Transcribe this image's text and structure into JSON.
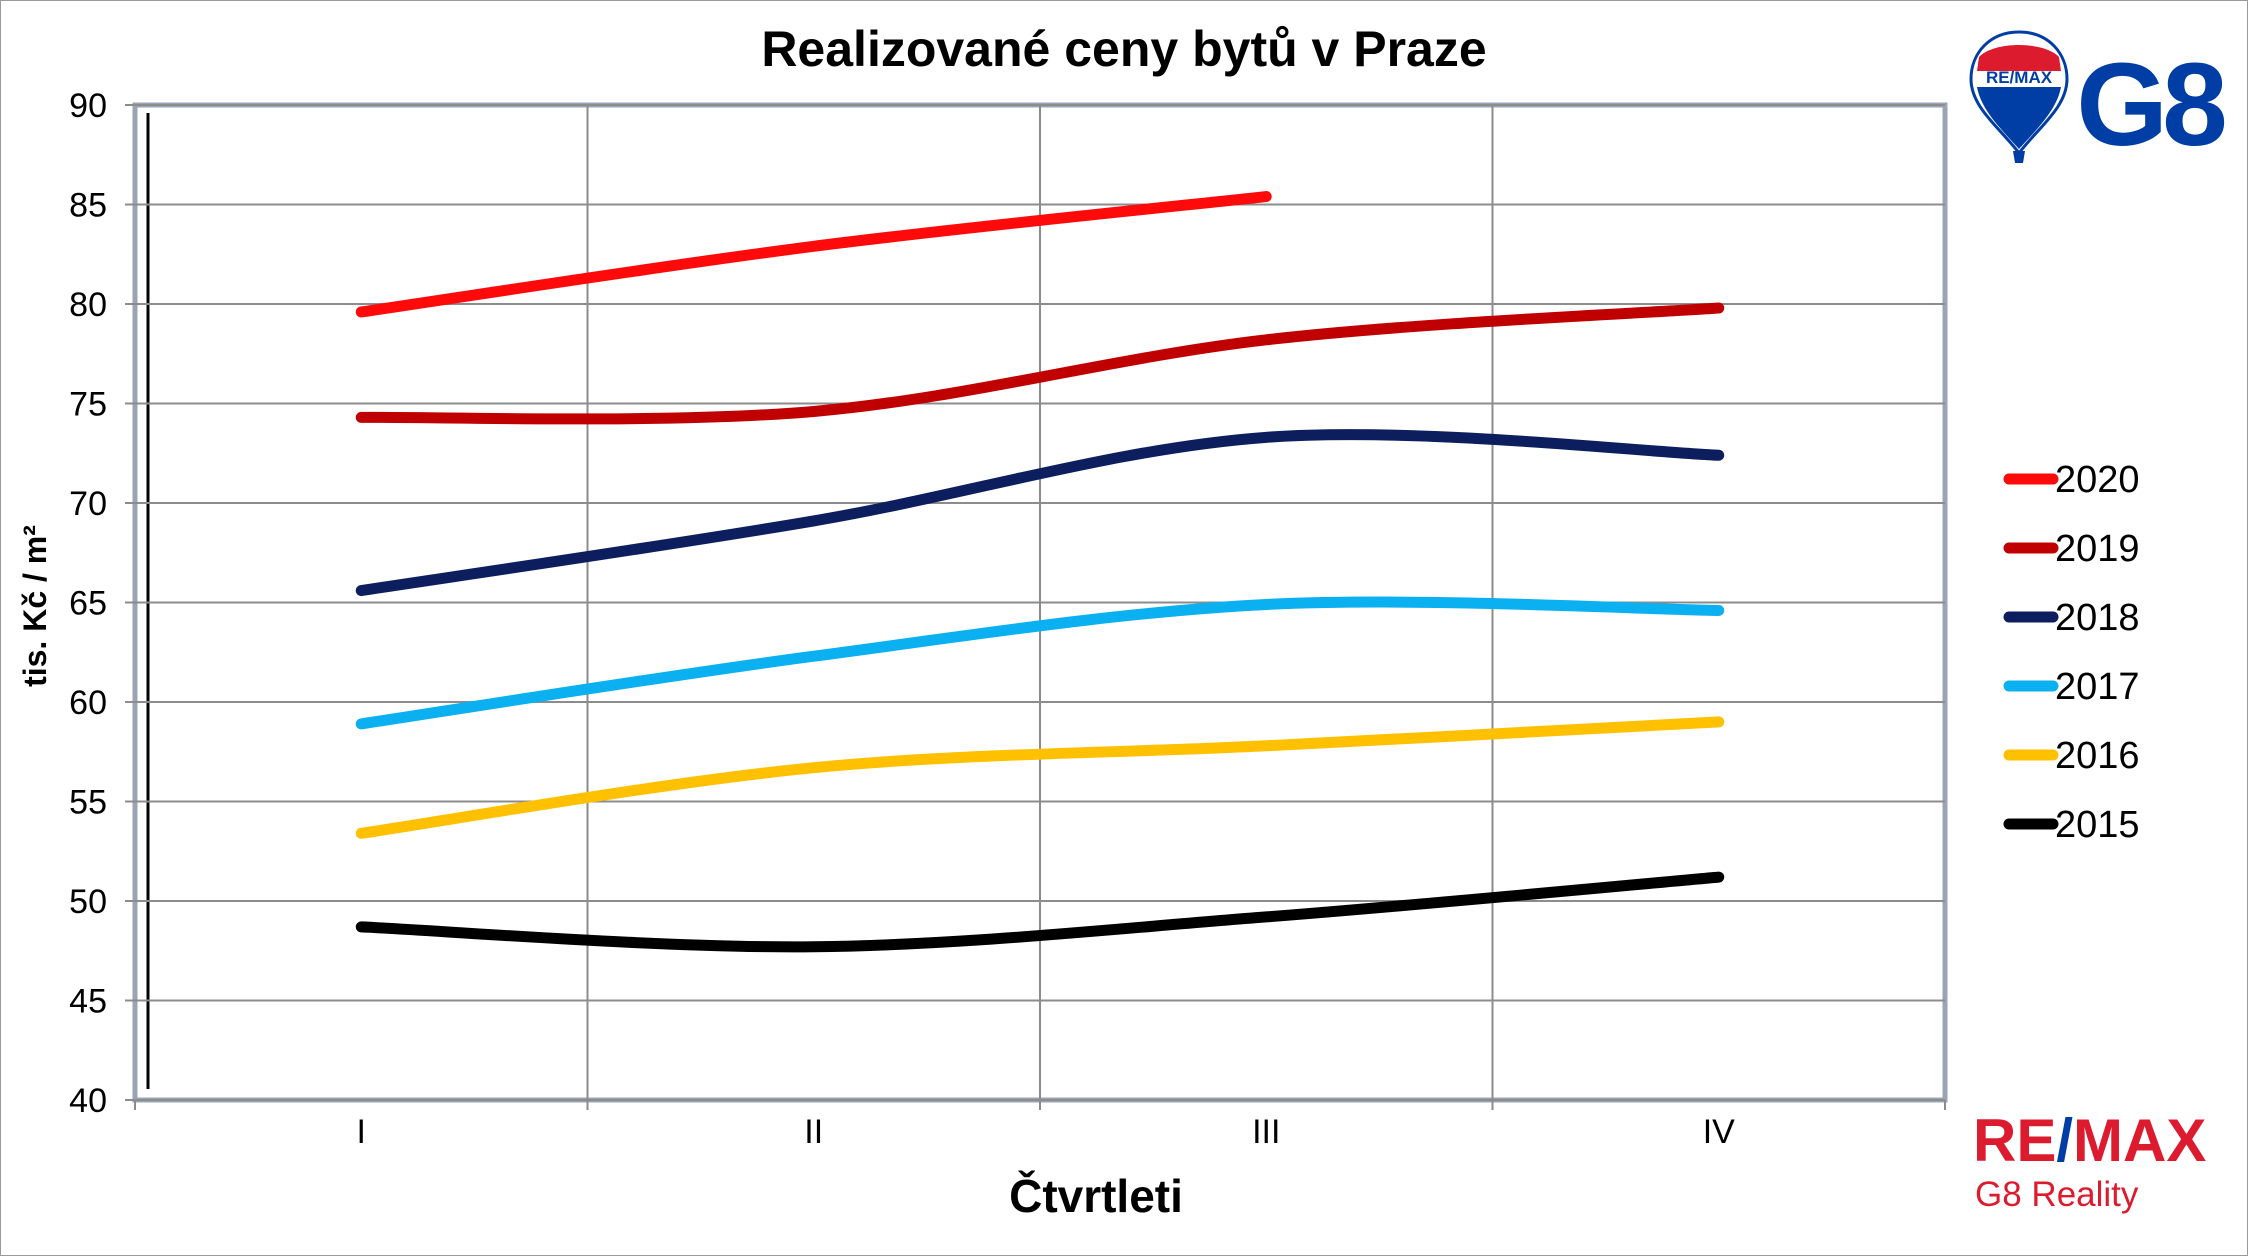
{
  "chart_data": {
    "type": "line",
    "title": "Realizované ceny bytů v Praze",
    "xlabel": "Čtvrtleti",
    "ylabel": "tis. Kč / m²",
    "categories": [
      "I",
      "II",
      "III",
      "IV"
    ],
    "ylim": [
      40,
      90
    ],
    "yticks": [
      40,
      45,
      50,
      55,
      60,
      65,
      70,
      75,
      80,
      85,
      90
    ],
    "grid": true,
    "legend_position": "right",
    "series": [
      {
        "name": "2020",
        "color": "#ff0a0a",
        "values": [
          79.6,
          82.9,
          85.4,
          null
        ]
      },
      {
        "name": "2019",
        "color": "#c00000",
        "values": [
          74.3,
          74.6,
          78.2,
          79.8
        ]
      },
      {
        "name": "2018",
        "color": "#0d1e5e",
        "values": [
          65.6,
          69.1,
          73.3,
          72.4
        ]
      },
      {
        "name": "2017",
        "color": "#0ab0f0",
        "values": [
          58.9,
          62.3,
          64.9,
          64.6
        ]
      },
      {
        "name": "2016",
        "color": "#ffc000",
        "values": [
          53.4,
          56.7,
          57.8,
          59.0
        ]
      },
      {
        "name": "2015",
        "color": "#000000",
        "values": [
          48.7,
          47.7,
          49.2,
          51.2
        ]
      }
    ]
  },
  "branding": {
    "balloon_text": "RE/MAX",
    "top_logo_text": "G8",
    "bottom_logo_re": "RE",
    "bottom_logo_slash": "/",
    "bottom_logo_max": "MAX",
    "bottom_logo_subtitle": "G8 Reality",
    "colors": {
      "red": "#dc1c2e",
      "blue": "#003da5"
    }
  }
}
